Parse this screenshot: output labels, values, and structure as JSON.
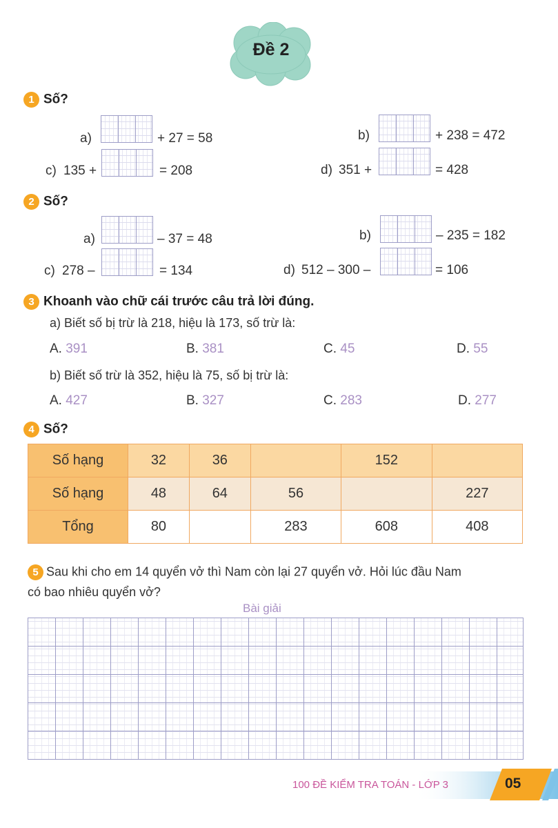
{
  "title": "Đề 2",
  "q1": {
    "number": "1",
    "heading": "Số?",
    "a": {
      "label": "a)",
      "after": "+ 27 = 58"
    },
    "b": {
      "label": "b)",
      "after": "+ 238 = 472"
    },
    "c": {
      "label": "c)",
      "before": "135 +",
      "after": "= 208"
    },
    "d": {
      "label": "d)",
      "before": "351 +",
      "after": "= 428"
    }
  },
  "q2": {
    "number": "2",
    "heading": "Số?",
    "a": {
      "label": "a)",
      "after": "– 37 = 48"
    },
    "b": {
      "label": "b)",
      "after": "– 235 = 182"
    },
    "c": {
      "label": "c)",
      "before": "278 –",
      "after": "= 134"
    },
    "d": {
      "label": "d)",
      "before": "512 – 300 –",
      "after": "= 106"
    }
  },
  "q3": {
    "number": "3",
    "heading": "Khoanh vào chữ cái trước câu trả lời đúng.",
    "a": {
      "question": "a) Biết số bị trừ là 218, hiệu là 173, số trừ là:",
      "options": [
        {
          "letter": "A.",
          "value": "391"
        },
        {
          "letter": "B.",
          "value": "381"
        },
        {
          "letter": "C.",
          "value": "45"
        },
        {
          "letter": "D.",
          "value": "55"
        }
      ]
    },
    "b": {
      "question": "b) Biết số trừ là 352, hiệu là 75, số bị trừ là:",
      "options": [
        {
          "letter": "A.",
          "value": "427"
        },
        {
          "letter": "B.",
          "value": "327"
        },
        {
          "letter": "C.",
          "value": "283"
        },
        {
          "letter": "D.",
          "value": "277"
        }
      ]
    }
  },
  "q4": {
    "number": "4",
    "heading": "Số?",
    "rows": [
      {
        "label": "Số hạng",
        "cells": [
          "32",
          "36",
          "",
          "152",
          ""
        ]
      },
      {
        "label": "Số hạng",
        "cells": [
          "48",
          "64",
          "56",
          "",
          "227"
        ]
      },
      {
        "label": "Tổng",
        "cells": [
          "80",
          "",
          "283",
          "608",
          "408"
        ]
      }
    ]
  },
  "q5": {
    "number": "5",
    "line1": "Sau khi cho em 14 quyển vở thì Nam còn lại 27 quyển vở. Hỏi lúc đầu Nam",
    "line2": "có bao nhiêu quyển vở?",
    "solution_label": "Bài giải"
  },
  "footer": {
    "series": "100 ĐỀ KIỂM TRA TOÁN - LỚP 3",
    "page": "05"
  },
  "colors": {
    "badge": "#f6a623",
    "cloud": "#9fd6c6",
    "accent_purple": "#a990c4",
    "table_header": "#f8c070",
    "footer_text": "#c9569b"
  }
}
